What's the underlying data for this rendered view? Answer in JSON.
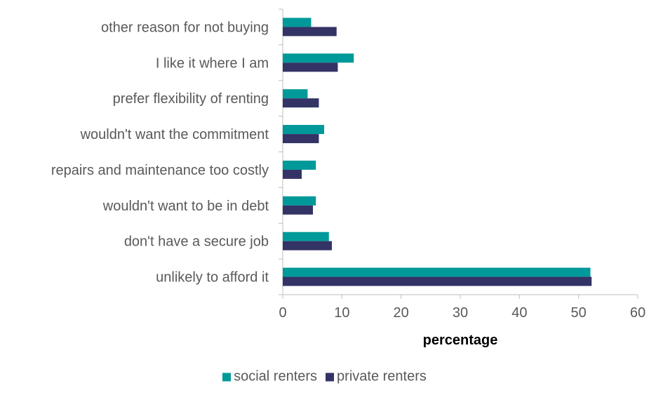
{
  "chart_data": {
    "type": "bar",
    "orientation": "horizontal",
    "categories": [
      "other reason for not buying",
      "I like it where I am",
      "prefer flexibility of renting",
      "wouldn't want the commitment",
      "repairs and maintenance too costly",
      "wouldn't want to be in debt",
      "don't have a secure job",
      "unlikely to afford it"
    ],
    "series": [
      {
        "name": "social renters",
        "color": "#009999",
        "values": [
          4.8,
          12.0,
          4.2,
          7.0,
          5.6,
          5.6,
          7.8,
          52.0
        ]
      },
      {
        "name": "private renters",
        "color": "#333366",
        "values": [
          9.1,
          9.3,
          6.1,
          6.1,
          3.2,
          5.1,
          8.3,
          52.2
        ]
      }
    ],
    "xlabel": "percentage",
    "ylabel": "",
    "title": "",
    "xlim": [
      0,
      60
    ],
    "xticks": [
      0,
      10,
      20,
      30,
      40,
      50,
      60
    ],
    "grid": false,
    "legend_position": "bottom"
  }
}
